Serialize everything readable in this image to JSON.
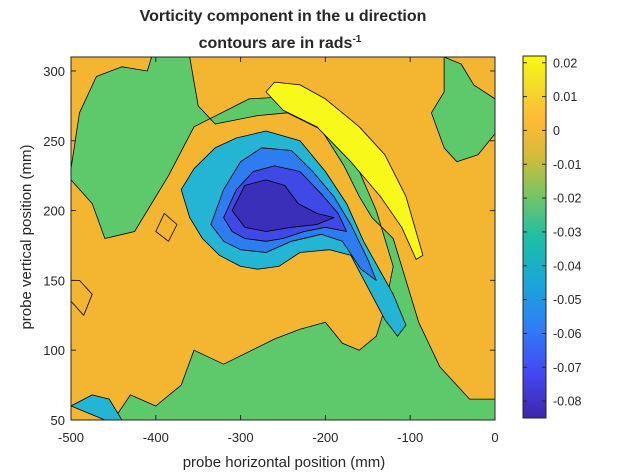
{
  "colors": {
    "level_0": "#f4b631",
    "level_neg_0_02": "#5ec96b",
    "level_neg_0_04": "#24b4d4",
    "level_neg_0_05": "#2d7cf0",
    "level_neg_0_06": "#3f49e6",
    "level_neg_0_07": "#3a2fb8",
    "level_pos_0_01": "#f8f91a",
    "axis": "#262626"
  },
  "chart_data": {
    "type": "heatmap",
    "subtype": "filled-contour",
    "title_line1": "Vorticity component in the u direction",
    "title_line2": "contours are in rads",
    "title_line2_suffix": "-1",
    "xlabel": "probe horizontal position (mm)",
    "ylabel": "probe vertical position (mm)",
    "xlim": [
      -500,
      0
    ],
    "ylim": [
      50,
      310
    ],
    "x_ticks": [
      -500,
      -400,
      -300,
      -200,
      -100,
      0
    ],
    "x_tick_labels": [
      "-500",
      "-400",
      "-300",
      "-200",
      "-100",
      "0"
    ],
    "y_ticks": [
      50,
      100,
      150,
      200,
      250,
      300
    ],
    "y_tick_labels": [
      "50",
      "100",
      "150",
      "200",
      "250",
      "300"
    ],
    "colorbar": {
      "limits": [
        -0.085,
        0.022
      ],
      "ticks": [
        0.02,
        0.01,
        0,
        -0.01,
        -0.02,
        -0.03,
        -0.04,
        -0.05,
        -0.06,
        -0.07,
        -0.08
      ],
      "tick_labels": [
        "0.02",
        "0.01",
        "0",
        "-0.01",
        "-0.02",
        "-0.03",
        "-0.04",
        "-0.05",
        "-0.06",
        "-0.07",
        "-0.08"
      ],
      "colormap": "parula"
    },
    "grid": false,
    "regions": [
      {
        "level": 0,
        "polygon": [
          [
            -500,
            50
          ],
          [
            0,
            50
          ],
          [
            0,
            310
          ],
          [
            -500,
            310
          ]
        ]
      },
      {
        "level": -0.02,
        "polygon": [
          [
            -500,
            230
          ],
          [
            -490,
            270
          ],
          [
            -470,
            296
          ],
          [
            -440,
            303
          ],
          [
            -410,
            300
          ],
          [
            -405,
            310
          ],
          [
            -360,
            310
          ],
          [
            -350,
            275
          ],
          [
            -330,
            262
          ],
          [
            -280,
            268
          ],
          [
            -245,
            270
          ],
          [
            -205,
            258
          ],
          [
            -178,
            232
          ],
          [
            -160,
            210
          ],
          [
            -145,
            195
          ],
          [
            -120,
            180
          ],
          [
            -90,
            120
          ],
          [
            -65,
            88
          ],
          [
            -30,
            65
          ],
          [
            0,
            65
          ],
          [
            0,
            50
          ],
          [
            -450,
            50
          ],
          [
            -430,
            68
          ],
          [
            -400,
            60
          ],
          [
            -370,
            75
          ],
          [
            -355,
            100
          ],
          [
            -320,
            90
          ],
          [
            -260,
            108
          ],
          [
            -230,
            115
          ],
          [
            -200,
            120
          ],
          [
            -180,
            105
          ],
          [
            -160,
            100
          ],
          [
            -140,
            110
          ],
          [
            -130,
            130
          ],
          [
            -120,
            160
          ],
          [
            -140,
            200
          ],
          [
            -165,
            235
          ],
          [
            -195,
            262
          ],
          [
            -235,
            282
          ],
          [
            -290,
            280
          ],
          [
            -355,
            260
          ],
          [
            -385,
            225
          ],
          [
            -425,
            185
          ],
          [
            -460,
            180
          ],
          [
            -475,
            205
          ],
          [
            -500,
            222
          ]
        ]
      },
      {
        "level": -0.02,
        "polygon": [
          [
            -60,
            310
          ],
          [
            -40,
            305
          ],
          [
            -25,
            290
          ],
          [
            0,
            280
          ],
          [
            0,
            255
          ],
          [
            -20,
            240
          ],
          [
            -45,
            235
          ],
          [
            -60,
            245
          ],
          [
            -75,
            270
          ],
          [
            -60,
            285
          ]
        ]
      },
      {
        "level": -0.04,
        "polygon": [
          [
            -370,
            215
          ],
          [
            -355,
            230
          ],
          [
            -330,
            245
          ],
          [
            -305,
            252
          ],
          [
            -270,
            257
          ],
          [
            -230,
            250
          ],
          [
            -200,
            228
          ],
          [
            -175,
            205
          ],
          [
            -155,
            178
          ],
          [
            -120,
            140
          ],
          [
            -105,
            118
          ],
          [
            -115,
            110
          ],
          [
            -130,
            122
          ],
          [
            -150,
            145
          ],
          [
            -170,
            168
          ],
          [
            -195,
            172
          ],
          [
            -230,
            170
          ],
          [
            -255,
            160
          ],
          [
            -280,
            158
          ],
          [
            -300,
            160
          ],
          [
            -325,
            168
          ],
          [
            -345,
            180
          ],
          [
            -360,
            195
          ]
        ]
      },
      {
        "level": -0.05,
        "polygon": [
          [
            -335,
            190
          ],
          [
            -320,
            215
          ],
          [
            -300,
            235
          ],
          [
            -275,
            245
          ],
          [
            -240,
            243
          ],
          [
            -215,
            228
          ],
          [
            -190,
            210
          ],
          [
            -170,
            190
          ],
          [
            -150,
            165
          ],
          [
            -140,
            150
          ],
          [
            -158,
            158
          ],
          [
            -180,
            178
          ],
          [
            -205,
            183
          ],
          [
            -240,
            178
          ],
          [
            -270,
            170
          ],
          [
            -300,
            172
          ],
          [
            -320,
            178
          ]
        ]
      },
      {
        "level": -0.06,
        "polygon": [
          [
            -320,
            195
          ],
          [
            -305,
            215
          ],
          [
            -285,
            228
          ],
          [
            -260,
            232
          ],
          [
            -230,
            228
          ],
          [
            -205,
            212
          ],
          [
            -185,
            198
          ],
          [
            -175,
            185
          ],
          [
            -200,
            188
          ],
          [
            -225,
            185
          ],
          [
            -250,
            180
          ],
          [
            -270,
            178
          ],
          [
            -295,
            180
          ],
          [
            -310,
            185
          ]
        ]
      },
      {
        "level": -0.07,
        "polygon": [
          [
            -310,
            200
          ],
          [
            -295,
            218
          ],
          [
            -270,
            222
          ],
          [
            -248,
            218
          ],
          [
            -232,
            205
          ],
          [
            -210,
            198
          ],
          [
            -190,
            195
          ],
          [
            -210,
            190
          ],
          [
            -240,
            188
          ],
          [
            -270,
            185
          ],
          [
            -295,
            188
          ]
        ]
      },
      {
        "level": 0.01,
        "polygon": [
          [
            -270,
            285
          ],
          [
            -260,
            292
          ],
          [
            -230,
            290
          ],
          [
            -200,
            280
          ],
          [
            -160,
            260
          ],
          [
            -130,
            240
          ],
          [
            -105,
            210
          ],
          [
            -85,
            168
          ],
          [
            -93,
            165
          ],
          [
            -110,
            188
          ],
          [
            -135,
            210
          ],
          [
            -170,
            235
          ],
          [
            -210,
            260
          ],
          [
            -250,
            272
          ]
        ]
      },
      {
        "level": 0,
        "polygon": [
          [
            -500,
            135
          ],
          [
            -485,
            125
          ],
          [
            -475,
            140
          ],
          [
            -490,
            150
          ],
          [
            -500,
            150
          ]
        ]
      },
      {
        "level": 0,
        "polygon": [
          [
            -400,
            185
          ],
          [
            -385,
            178
          ],
          [
            -375,
            190
          ],
          [
            -390,
            198
          ]
        ]
      },
      {
        "level": -0.04,
        "polygon": [
          [
            -500,
            60
          ],
          [
            -480,
            55
          ],
          [
            -460,
            50
          ],
          [
            -440,
            50
          ],
          [
            -455,
            65
          ],
          [
            -475,
            68
          ]
        ]
      }
    ]
  }
}
